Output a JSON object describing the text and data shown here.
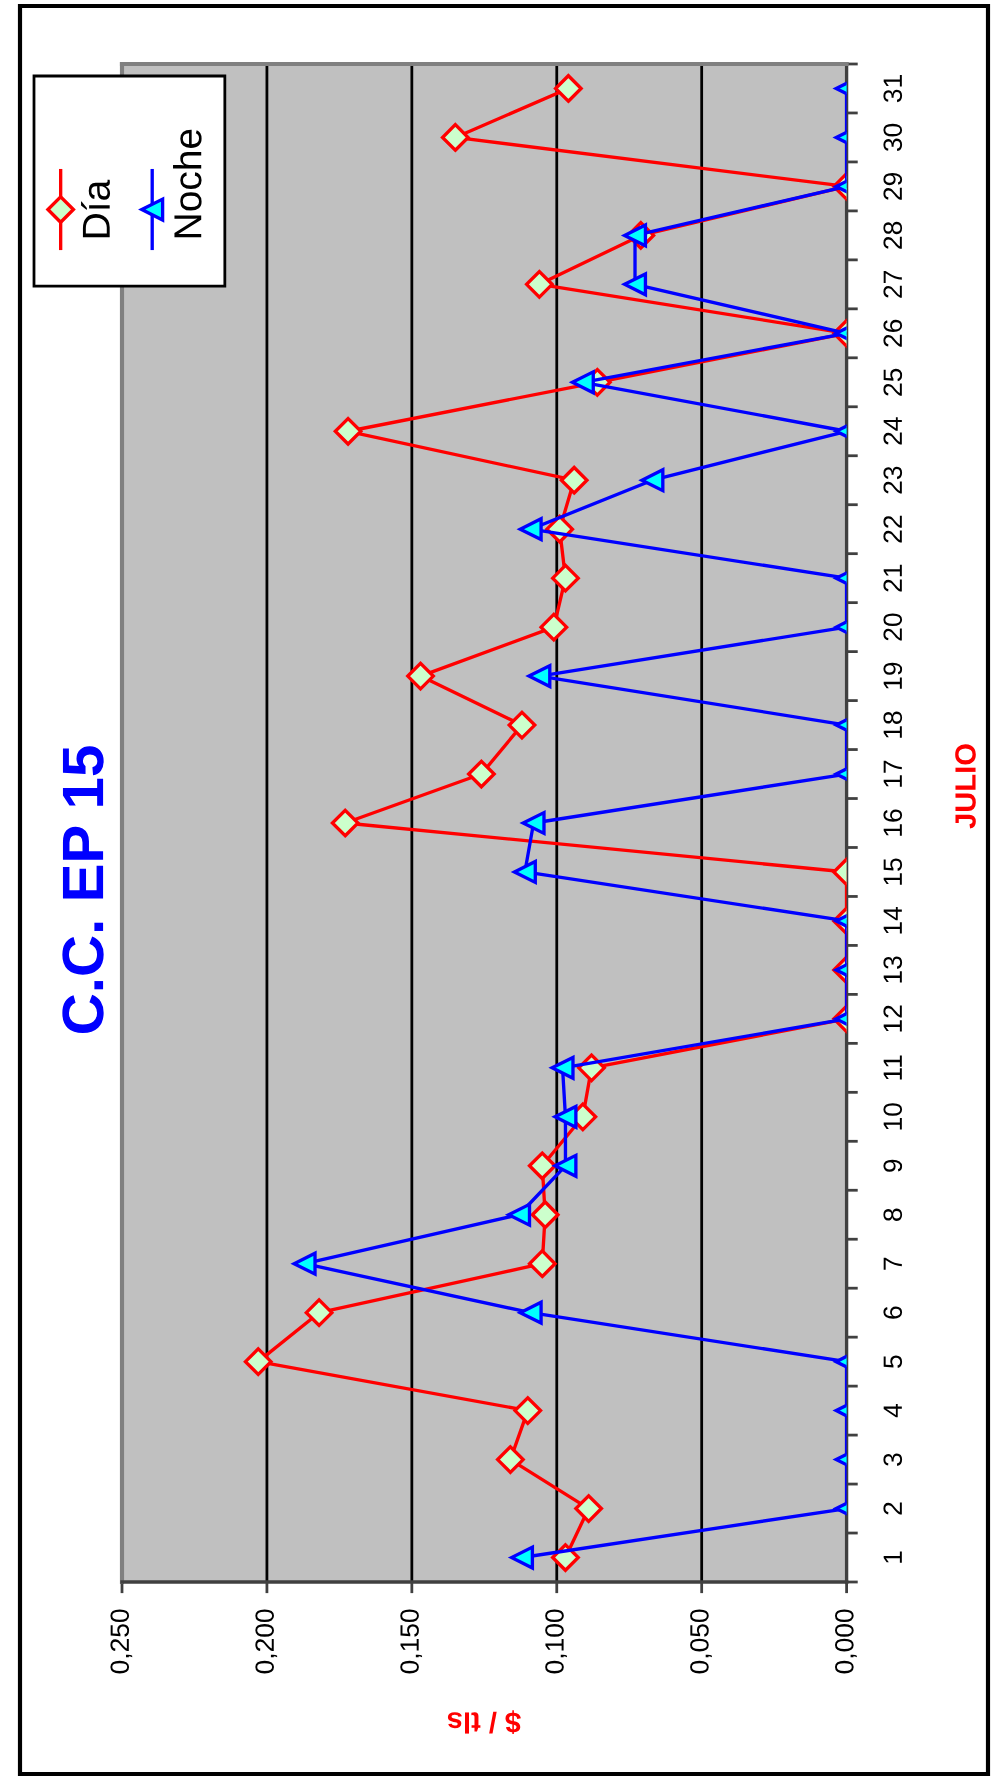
{
  "chart_data": {
    "type": "line",
    "orientation": "horizontal",
    "title": "C.C. EP 15",
    "xlabel": "$ / tls",
    "ylabel": "JULIO",
    "categories": [
      "31",
      "30",
      "29",
      "28",
      "27",
      "26",
      "25",
      "24",
      "23",
      "22",
      "21",
      "20",
      "19",
      "18",
      "17",
      "16",
      "15",
      "14",
      "13",
      "12",
      "11",
      "10",
      "9",
      "8",
      "7",
      "6",
      "5",
      "4",
      "3",
      "2",
      "1"
    ],
    "series": [
      {
        "name": "Día",
        "color": "#ff0000",
        "marker": "diamond",
        "values": [
          0.096,
          0.135,
          0,
          0.071,
          0.106,
          0,
          0.086,
          0.172,
          0.094,
          0.099,
          0.097,
          0.101,
          0.147,
          0.112,
          0.126,
          0.173,
          0,
          0,
          0,
          0,
          0.088,
          0.091,
          0.105,
          0.104,
          0.105,
          0.182,
          0.203,
          0.11,
          0.116,
          0.089,
          0.097
        ]
      },
      {
        "name": "Noche",
        "color": "#0000ff",
        "marker": "triangle",
        "values": [
          0,
          0,
          0,
          0.073,
          0.073,
          0,
          0.091,
          0,
          0.067,
          0.109,
          0,
          0,
          0.106,
          0,
          0,
          0.108,
          0.111,
          0,
          0,
          0,
          0.098,
          0.097,
          0.097,
          0.113,
          0.187,
          0.109,
          0,
          0,
          0,
          0,
          0.112
        ]
      }
    ],
    "xlim": [
      0.25,
      0
    ],
    "xticks": [
      {
        "value": 0.25,
        "label": "0,250"
      },
      {
        "value": 0.2,
        "label": "0,200"
      },
      {
        "value": 0.15,
        "label": "0,150"
      },
      {
        "value": 0.1,
        "label": "0,100"
      },
      {
        "value": 0.05,
        "label": "0,050"
      },
      {
        "value": 0,
        "label": "0,000"
      }
    ],
    "grid": "x",
    "legend": "top left"
  }
}
